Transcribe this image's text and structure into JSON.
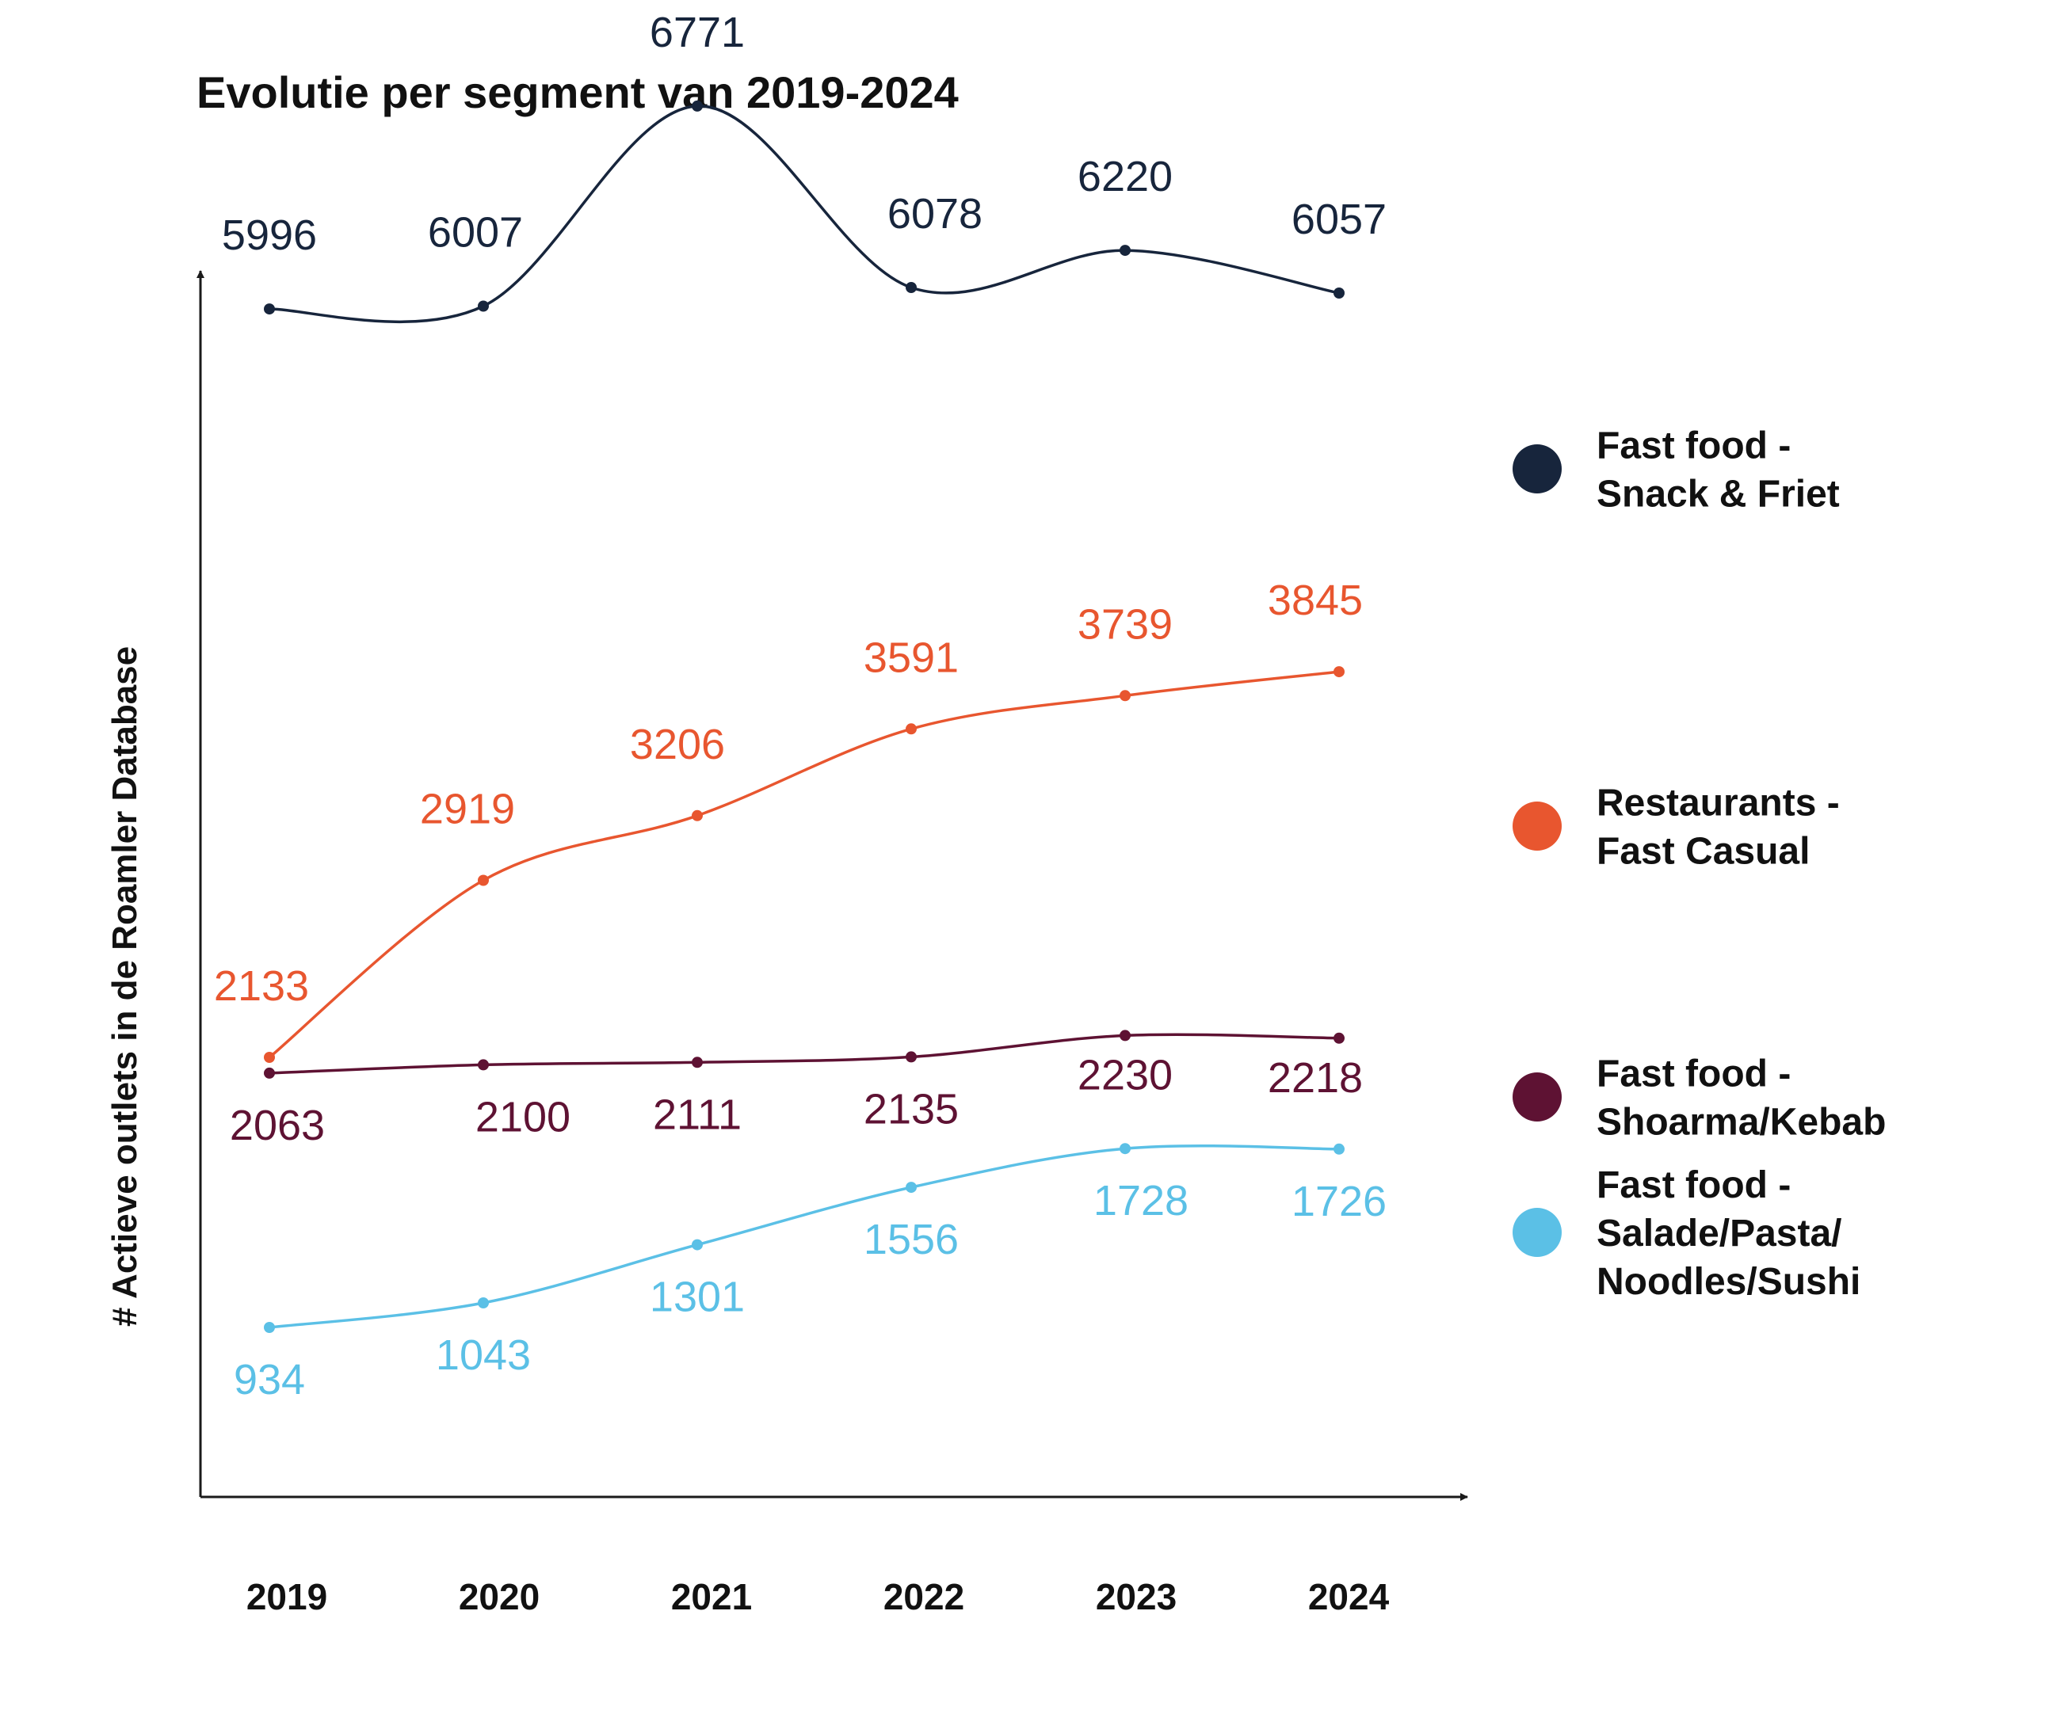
{
  "chart_data": {
    "type": "line",
    "title": "Evolutie per segment van 2019-2024",
    "xlabel": "",
    "ylabel": "# Actieve outlets in de Roamler Database",
    "categories": [
      "2019",
      "2020",
      "2021",
      "2022",
      "2023",
      "2024"
    ],
    "series": [
      {
        "name": "Fast food - Snack & Friet",
        "legend_lines": [
          "Fast food -",
          "Snack & Friet"
        ],
        "color": "#17253c",
        "values": [
          5996,
          6007,
          6771,
          6078,
          6220,
          6057
        ]
      },
      {
        "name": "Restaurants - Fast Casual",
        "legend_lines": [
          "Restaurants -",
          "Fast Casual"
        ],
        "color": "#e8562f",
        "values": [
          2133,
          2919,
          3206,
          3591,
          3739,
          3845
        ]
      },
      {
        "name": "Fast food - Shoarma/Kebab",
        "legend_lines": [
          "Fast food -",
          "Shoarma/Kebab"
        ],
        "color": "#5e1233",
        "values": [
          2063,
          2100,
          2111,
          2135,
          2230,
          2218
        ]
      },
      {
        "name": "Fast food - Salade/Pasta/Noodles/Sushi",
        "legend_lines": [
          "Fast food -",
          "Salade/Pasta/",
          "Noodles/Sushi"
        ],
        "color": "#5bc0e6",
        "values": [
          934,
          1043,
          1301,
          1556,
          1728,
          1726
        ]
      }
    ],
    "grid": false,
    "legend": "right"
  }
}
